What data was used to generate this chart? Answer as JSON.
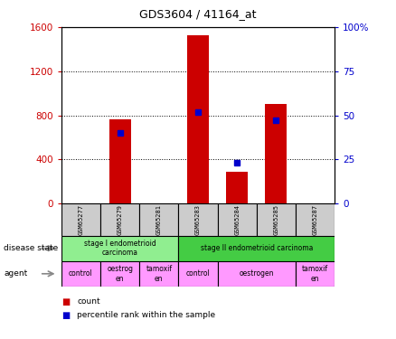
{
  "title": "GDS3604 / 41164_at",
  "samples": [
    "GSM65277",
    "GSM65279",
    "GSM65281",
    "GSM65283",
    "GSM65284",
    "GSM65285",
    "GSM65287"
  ],
  "counts": [
    0,
    760,
    0,
    1530,
    290,
    900,
    0
  ],
  "percentile_ranks": [
    null,
    40,
    null,
    52,
    23,
    47,
    null
  ],
  "ylim_left": [
    0,
    1600
  ],
  "ylim_right": [
    0,
    100
  ],
  "yticks_left": [
    0,
    400,
    800,
    1200,
    1600
  ],
  "yticks_right": [
    0,
    25,
    50,
    75,
    100
  ],
  "ytick_labels_right": [
    "0",
    "25",
    "50",
    "75",
    "100%"
  ],
  "bar_color": "#cc0000",
  "dot_color": "#0000cc",
  "disease_state": [
    {
      "label": "stage I endometrioid\ncarcinoma",
      "start": 0,
      "end": 3,
      "color": "#90ee90"
    },
    {
      "label": "stage II endometrioid carcinoma",
      "start": 3,
      "end": 7,
      "color": "#44cc44"
    }
  ],
  "agent": [
    {
      "label": "control",
      "start": 0,
      "end": 1,
      "color": "#ff99ff"
    },
    {
      "label": "oestrog\nen",
      "start": 1,
      "end": 2,
      "color": "#ff99ff"
    },
    {
      "label": "tamoxif\nen",
      "start": 2,
      "end": 3,
      "color": "#ff99ff"
    },
    {
      "label": "control",
      "start": 3,
      "end": 4,
      "color": "#ff99ff"
    },
    {
      "label": "oestrogen",
      "start": 4,
      "end": 6,
      "color": "#ff99ff"
    },
    {
      "label": "tamoxif\nen",
      "start": 6,
      "end": 7,
      "color": "#ff99ff"
    }
  ],
  "tick_color_left": "#cc0000",
  "tick_color_right": "#0000cc",
  "sample_box_color": "#cccccc",
  "legend_count_label": "count",
  "legend_pct_label": "percentile rank within the sample",
  "disease_state_label": "disease state",
  "agent_label": "agent"
}
